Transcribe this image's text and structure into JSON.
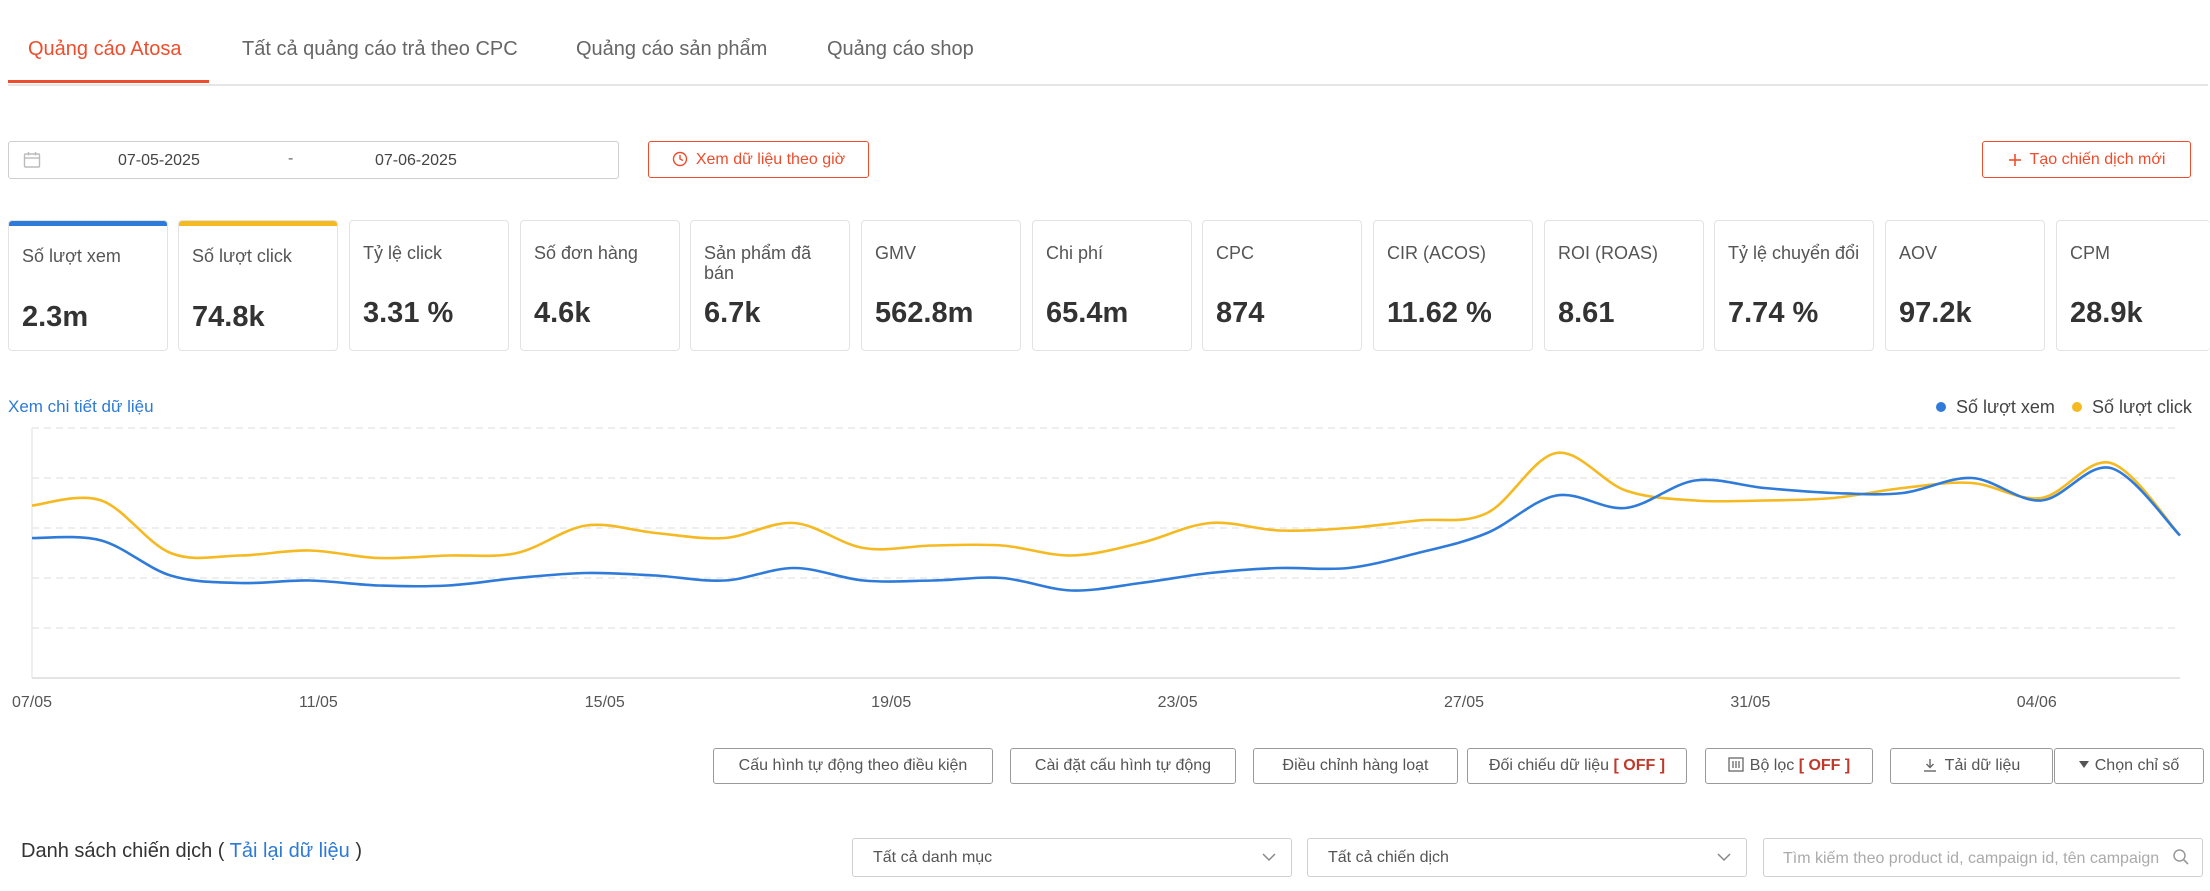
{
  "tabs": [
    {
      "label": "Quảng cáo Atosa"
    },
    {
      "label": "Tất cả quảng cáo trả theo CPC"
    },
    {
      "label": "Quảng cáo sản phẩm"
    },
    {
      "label": "Quảng cáo shop"
    }
  ],
  "date_range": {
    "start": "07-05-2025",
    "separator": "-",
    "end": "07-06-2025"
  },
  "hourly_button": "Xem dữ liệu theo giờ",
  "create_button": "Tạo chiến dịch mới",
  "metrics": [
    {
      "label": "Số lượt xem",
      "value": "2.3m"
    },
    {
      "label": "Số lượt click",
      "value": "74.8k"
    },
    {
      "label": "Tỷ lệ click",
      "value": "3.31 %"
    },
    {
      "label": "Số đơn hàng",
      "value": "4.6k"
    },
    {
      "label": "Sản phẩm đã bán",
      "value": "6.7k"
    },
    {
      "label": "GMV",
      "value": "562.8m"
    },
    {
      "label": "Chi phí",
      "value": "65.4m"
    },
    {
      "label": "CPC",
      "value": "874"
    },
    {
      "label": "CIR (ACOS)",
      "value": "11.62 %"
    },
    {
      "label": "ROI (ROAS)",
      "value": "8.61"
    },
    {
      "label": "Tỷ lệ chuyển đổi",
      "value": "7.74 %"
    },
    {
      "label": "AOV",
      "value": "97.2k"
    },
    {
      "label": "CPM",
      "value": "28.9k"
    }
  ],
  "colors": {
    "accent": "#ee4d2d",
    "views": "#2f7bd9",
    "clicks": "#f5b921",
    "link": "#2d7ad6",
    "off": "#c0392b"
  },
  "detail_link": "Xem chi tiết dữ liệu",
  "chart_data": {
    "type": "line",
    "x_tick_labels": [
      "07/05",
      "11/05",
      "15/05",
      "19/05",
      "23/05",
      "27/05",
      "31/05",
      "04/06"
    ],
    "grid": true,
    "legend_position": "top-right",
    "series": [
      {
        "name": "Số lượt xem",
        "color": "#2f7bd9",
        "values": [
          0.56,
          0.55,
          0.41,
          0.38,
          0.39,
          0.37,
          0.37,
          0.4,
          0.42,
          0.41,
          0.39,
          0.44,
          0.39,
          0.39,
          0.4,
          0.35,
          0.38,
          0.42,
          0.44,
          0.44,
          0.5,
          0.58,
          0.73,
          0.68,
          0.79,
          0.76,
          0.74,
          0.74,
          0.8,
          0.71,
          0.84,
          0.57
        ]
      },
      {
        "name": "Số lượt click",
        "color": "#f5b921",
        "values": [
          0.69,
          0.71,
          0.5,
          0.49,
          0.51,
          0.48,
          0.49,
          0.5,
          0.61,
          0.58,
          0.56,
          0.62,
          0.52,
          0.53,
          0.53,
          0.49,
          0.54,
          0.62,
          0.59,
          0.6,
          0.63,
          0.66,
          0.9,
          0.75,
          0.71,
          0.71,
          0.72,
          0.76,
          0.78,
          0.72,
          0.86,
          0.57
        ]
      }
    ]
  },
  "actions": {
    "auto_condition": "Cấu hình tự động theo điều kiện",
    "auto_settings": "Cài đặt cấu hình tự động",
    "bulk_adjust": "Điều chỉnh hàng loạt",
    "compare": "Đối chiếu dữ liệu",
    "filter": "Bộ lọc",
    "off": "[ OFF ]",
    "download": "Tải dữ liệu",
    "choose_metrics": "Chọn chỉ số"
  },
  "campaign_list": {
    "title": "Danh sách chiến dịch",
    "open": "(",
    "reload": "Tải lại dữ liệu",
    "close": ")"
  },
  "filters": {
    "category": "Tất cả danh mục",
    "campaign": "Tất cả chiến dịch",
    "search_placeholder": "Tìm kiếm theo product id, campaign id, tên campaign"
  }
}
